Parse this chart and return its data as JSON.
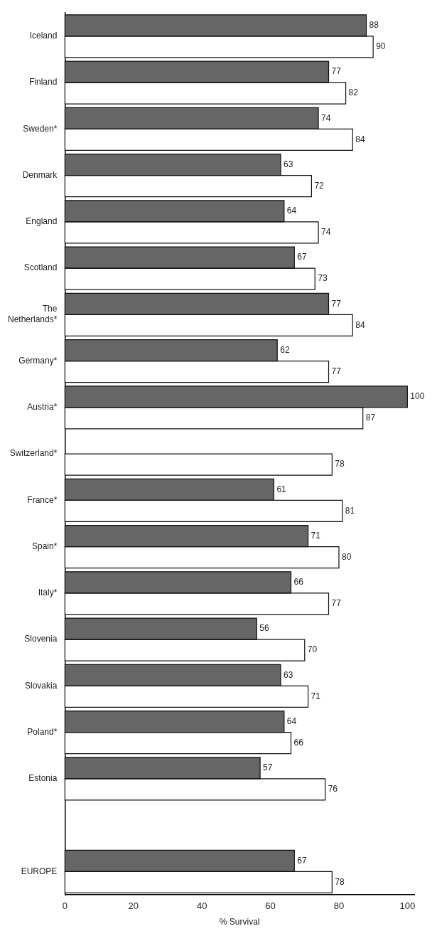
{
  "chart_data": {
    "type": "bar",
    "orientation": "horizontal",
    "xlabel": "% Survival",
    "categories": [
      "Iceland",
      "Finland",
      "Sweden*",
      "Denmark",
      "England",
      "Scotland",
      "The Netherlands*",
      "Germany*",
      "Austria*",
      "Switzerland*",
      "France*",
      "Spain*",
      "Italy*",
      "Slovenia",
      "Slovakia",
      "Poland*",
      "Estonia",
      null,
      "EUROPE"
    ],
    "series": [
      {
        "color": "#666666",
        "values": [
          88,
          77,
          74,
          63,
          64,
          67,
          77,
          62,
          100,
          null,
          61,
          71,
          66,
          56,
          63,
          64,
          57,
          null,
          67
        ]
      },
      {
        "color": "#ffffff",
        "values": [
          90,
          82,
          84,
          72,
          74,
          73,
          84,
          77,
          87,
          78,
          81,
          80,
          77,
          70,
          71,
          66,
          76,
          null,
          78
        ]
      }
    ],
    "xlim": [
      0,
      102
    ],
    "xticks": [
      0,
      20,
      40,
      60,
      80,
      100
    ],
    "data_labels": true,
    "grid": false,
    "legend": false
  }
}
